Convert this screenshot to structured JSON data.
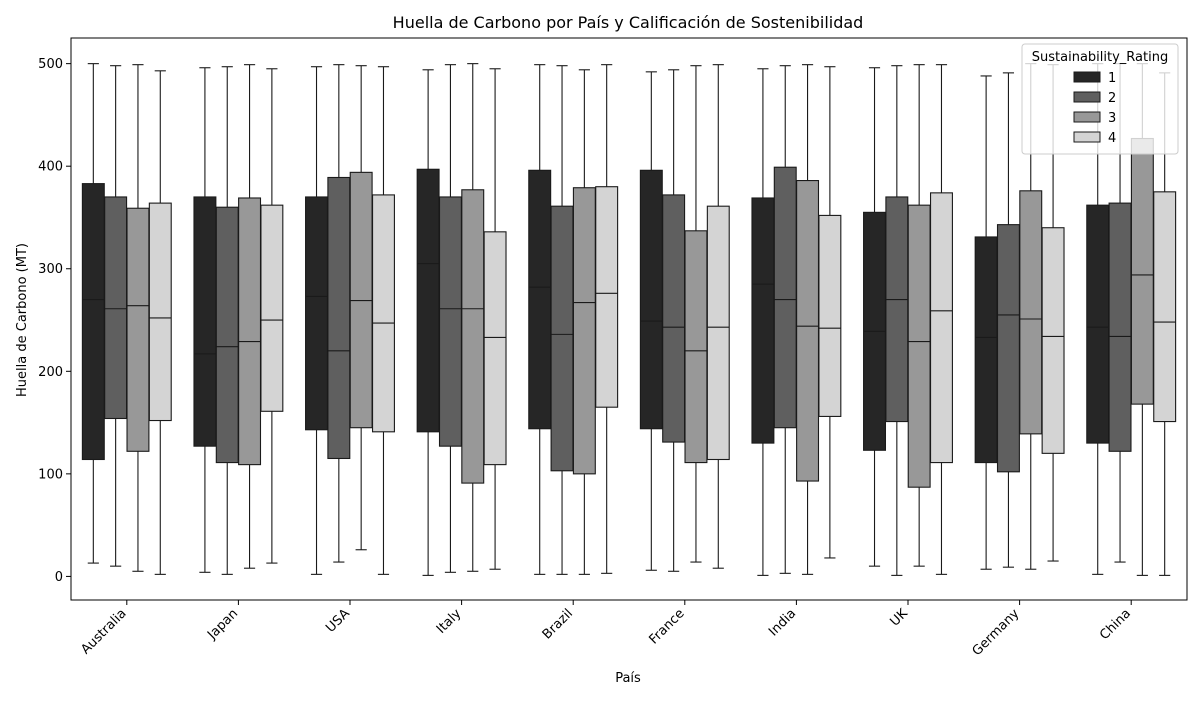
{
  "chart_data": {
    "type": "box",
    "title": "Huella de Carbono por País y Calificación de Sostenibilidad",
    "xlabel": "País",
    "ylabel": "Huella de Carbono (MT)",
    "ylim": [
      -23,
      525
    ],
    "yticks": [
      0,
      100,
      200,
      300,
      400,
      500
    ],
    "categories": [
      "Australia",
      "Japan",
      "USA",
      "Italy",
      "Brazil",
      "France",
      "India",
      "UK",
      "Germany",
      "China"
    ],
    "legend": {
      "title": "Sustainability_Rating",
      "placement": "top-right"
    },
    "series": [
      {
        "name": "1",
        "color": "#262626",
        "boxes": [
          {
            "min": 13,
            "q1": 114,
            "median": 270,
            "q3": 383,
            "max": 500
          },
          {
            "min": 4,
            "q1": 127,
            "median": 217,
            "q3": 370,
            "max": 496
          },
          {
            "min": 2,
            "q1": 143,
            "median": 273,
            "q3": 370,
            "max": 497
          },
          {
            "min": 1,
            "q1": 141,
            "median": 305,
            "q3": 397,
            "max": 494
          },
          {
            "min": 2,
            "q1": 144,
            "median": 282,
            "q3": 396,
            "max": 499
          },
          {
            "min": 6,
            "q1": 144,
            "median": 249,
            "q3": 396,
            "max": 492
          },
          {
            "min": 1,
            "q1": 130,
            "median": 285,
            "q3": 369,
            "max": 495
          },
          {
            "min": 10,
            "q1": 123,
            "median": 239,
            "q3": 355,
            "max": 496
          },
          {
            "min": 7,
            "q1": 111,
            "median": 233,
            "q3": 331,
            "max": 488
          },
          {
            "min": 2,
            "q1": 130,
            "median": 243,
            "q3": 362,
            "max": 500
          }
        ]
      },
      {
        "name": "2",
        "color": "#5f5f5f",
        "boxes": [
          {
            "min": 10,
            "q1": 154,
            "median": 261,
            "q3": 370,
            "max": 498
          },
          {
            "min": 2,
            "q1": 111,
            "median": 224,
            "q3": 360,
            "max": 497
          },
          {
            "min": 14,
            "q1": 115,
            "median": 220,
            "q3": 389,
            "max": 499
          },
          {
            "min": 4,
            "q1": 127,
            "median": 261,
            "q3": 370,
            "max": 499
          },
          {
            "min": 2,
            "q1": 103,
            "median": 236,
            "q3": 361,
            "max": 498
          },
          {
            "min": 5,
            "q1": 131,
            "median": 243,
            "q3": 372,
            "max": 494
          },
          {
            "min": 3,
            "q1": 145,
            "median": 270,
            "q3": 399,
            "max": 498
          },
          {
            "min": 1,
            "q1": 151,
            "median": 270,
            "q3": 370,
            "max": 498
          },
          {
            "min": 9,
            "q1": 102,
            "median": 255,
            "q3": 343,
            "max": 491
          },
          {
            "min": 14,
            "q1": 122,
            "median": 234,
            "q3": 364,
            "max": 500
          }
        ]
      },
      {
        "name": "3",
        "color": "#989898",
        "boxes": [
          {
            "min": 5,
            "q1": 122,
            "median": 264,
            "q3": 359,
            "max": 499
          },
          {
            "min": 8,
            "q1": 109,
            "median": 229,
            "q3": 369,
            "max": 499
          },
          {
            "min": 26,
            "q1": 145,
            "median": 269,
            "q3": 394,
            "max": 498
          },
          {
            "min": 5,
            "q1": 91,
            "median": 261,
            "q3": 377,
            "max": 500
          },
          {
            "min": 2,
            "q1": 100,
            "median": 267,
            "q3": 379,
            "max": 494
          },
          {
            "min": 14,
            "q1": 111,
            "median": 220,
            "q3": 337,
            "max": 498
          },
          {
            "min": 2,
            "q1": 93,
            "median": 244,
            "q3": 386,
            "max": 499
          },
          {
            "min": 10,
            "q1": 87,
            "median": 229,
            "q3": 362,
            "max": 499
          },
          {
            "min": 7,
            "q1": 139,
            "median": 251,
            "q3": 376,
            "max": 500
          },
          {
            "min": 1,
            "q1": 168,
            "median": 294,
            "q3": 427,
            "max": 500
          }
        ]
      },
      {
        "name": "4",
        "color": "#d4d4d4",
        "boxes": [
          {
            "min": 2,
            "q1": 152,
            "median": 252,
            "q3": 364,
            "max": 493
          },
          {
            "min": 13,
            "q1": 161,
            "median": 250,
            "q3": 362,
            "max": 495
          },
          {
            "min": 2,
            "q1": 141,
            "median": 247,
            "q3": 372,
            "max": 497
          },
          {
            "min": 7,
            "q1": 109,
            "median": 233,
            "q3": 336,
            "max": 495
          },
          {
            "min": 3,
            "q1": 165,
            "median": 276,
            "q3": 380,
            "max": 499
          },
          {
            "min": 8,
            "q1": 114,
            "median": 243,
            "q3": 361,
            "max": 499
          },
          {
            "min": 18,
            "q1": 156,
            "median": 242,
            "q3": 352,
            "max": 497
          },
          {
            "min": 2,
            "q1": 111,
            "median": 259,
            "q3": 374,
            "max": 499
          },
          {
            "min": 15,
            "q1": 120,
            "median": 234,
            "q3": 340,
            "max": 499
          },
          {
            "min": 1,
            "q1": 151,
            "median": 248,
            "q3": 375,
            "max": 491
          }
        ]
      }
    ]
  }
}
